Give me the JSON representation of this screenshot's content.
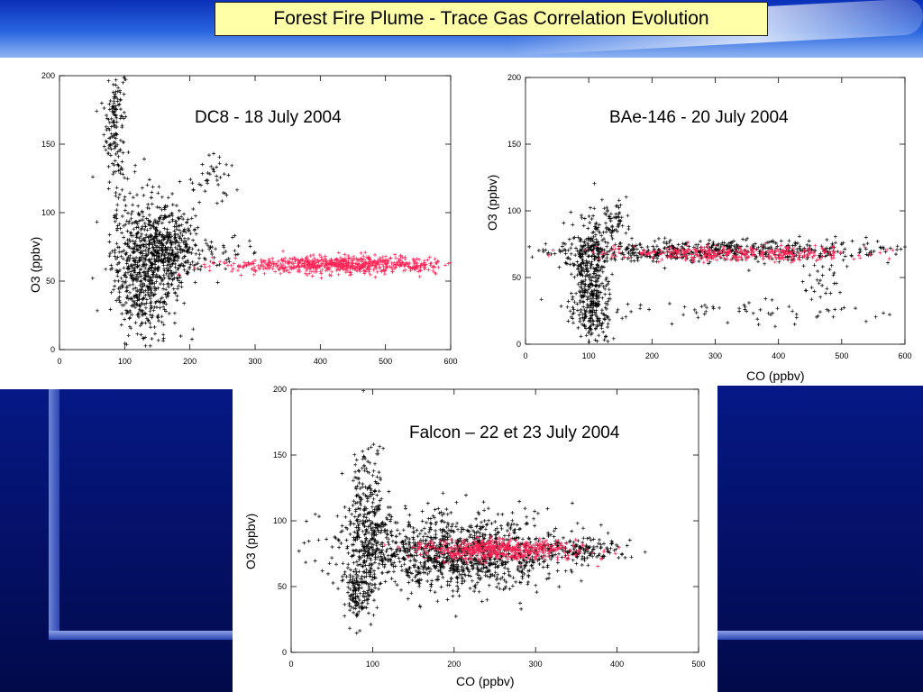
{
  "slide": {
    "title": "Forest Fire Plume - Trace Gas Correlation Evolution"
  },
  "colors": {
    "early_plume": "#000000",
    "aged_plume": "#ff2255"
  },
  "chart_data": [
    {
      "type": "scatter",
      "title": "DC8 - 18 July 2004",
      "xlabel": "",
      "ylabel": "O3 (ppbv)",
      "xlim": [
        0,
        600
      ],
      "ylim": [
        0,
        200
      ],
      "xticks": [
        "0",
        "100",
        "200",
        "300",
        "400",
        "500",
        "600"
      ],
      "yticks": [
        "0",
        "50",
        "100",
        "150",
        "200"
      ],
      "grid": false,
      "series": [
        {
          "color": "#000000",
          "clusters": [
            {
              "x": 85,
              "y": 165,
              "sx": 8,
              "sy": 25,
              "n": 160
            },
            {
              "x": 130,
              "y": 60,
              "sx": 25,
              "sy": 25,
              "n": 700
            },
            {
              "x": 175,
              "y": 75,
              "sx": 20,
              "sy": 15,
              "n": 300
            },
            {
              "x": 230,
              "y": 125,
              "sx": 20,
              "sy": 8,
              "n": 40
            },
            {
              "x": 250,
              "y": 70,
              "sx": 30,
              "sy": 6,
              "n": 40
            }
          ]
        },
        {
          "color": "#ff2255",
          "clusters": [
            {
              "x": 435,
              "y": 62,
              "sx": 85,
              "sy": 3,
              "n": 700
            }
          ]
        }
      ]
    },
    {
      "type": "scatter",
      "title": "BAe-146 - 20 July 2004",
      "xlabel": "CO (ppbv)",
      "ylabel": "O3 (ppbv)",
      "xlim": [
        0,
        600
      ],
      "ylim": [
        0,
        200
      ],
      "xticks": [
        "0",
        "100",
        "200",
        "300",
        "400",
        "500",
        "600"
      ],
      "yticks": [
        "0",
        "50",
        "100",
        "150",
        "200"
      ],
      "grid": false,
      "series": [
        {
          "color": "#000000",
          "clusters": [
            {
              "x": 100,
              "y": 55,
              "sx": 15,
              "sy": 20,
              "n": 350
            },
            {
              "x": 110,
              "y": 20,
              "sx": 15,
              "sy": 10,
              "n": 120
            },
            {
              "x": 300,
              "y": 70,
              "sx": 150,
              "sy": 4,
              "n": 600
            },
            {
              "x": 140,
              "y": 92,
              "sx": 10,
              "sy": 8,
              "n": 60
            },
            {
              "x": 320,
              "y": 25,
              "sx": 140,
              "sy": 5,
              "n": 70
            },
            {
              "x": 470,
              "y": 45,
              "sx": 15,
              "sy": 8,
              "n": 25
            }
          ]
        },
        {
          "color": "#ff2255",
          "clusters": [
            {
              "x": 330,
              "y": 68,
              "sx": 110,
              "sy": 3,
              "n": 350
            }
          ]
        }
      ]
    },
    {
      "type": "scatter",
      "title": "Falcon – 22 et 23 July 2004",
      "xlabel": "CO (ppbv)",
      "ylabel": "O3 (ppbv)",
      "xlim": [
        0,
        500
      ],
      "ylim": [
        0,
        200
      ],
      "xticks": [
        "0",
        "100",
        "200",
        "300",
        "400",
        "500"
      ],
      "yticks": [
        "0",
        "50",
        "100",
        "150",
        "200"
      ],
      "grid": false,
      "series": [
        {
          "color": "#000000",
          "clusters": [
            {
              "x": 95,
              "y": 95,
              "sx": 12,
              "sy": 30,
              "n": 350
            },
            {
              "x": 200,
              "y": 75,
              "sx": 65,
              "sy": 14,
              "n": 1200
            },
            {
              "x": 80,
              "y": 45,
              "sx": 8,
              "sy": 10,
              "n": 120
            },
            {
              "x": 350,
              "y": 78,
              "sx": 30,
              "sy": 4,
              "n": 150
            }
          ]
        },
        {
          "color": "#ff2255",
          "clusters": [
            {
              "x": 250,
              "y": 78,
              "sx": 50,
              "sy": 4,
              "n": 500
            }
          ]
        }
      ]
    }
  ]
}
